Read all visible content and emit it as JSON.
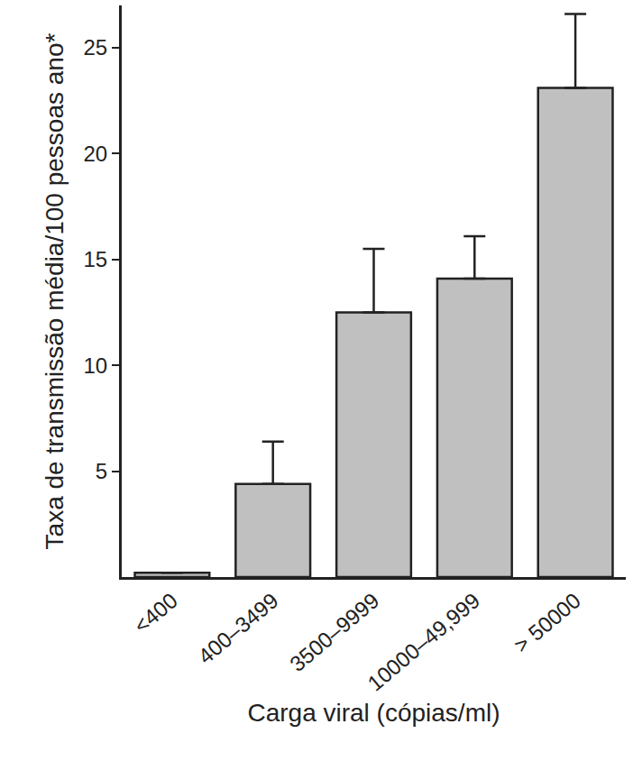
{
  "chart_data": {
    "type": "bar",
    "x_label": "Carga viral (cópias/ml)",
    "y_label": "Taxa de transmissão média/100 pessoas ano*",
    "categories": [
      "<400",
      "400–3499",
      "3500–9999",
      "10000–49,999",
      "> 50000"
    ],
    "values": [
      0.2,
      4.4,
      12.5,
      14.1,
      23.1
    ],
    "error_plus": [
      null,
      2.0,
      3.0,
      2.0,
      3.5
    ],
    "color": "#c0c0c0",
    "ylim": [
      0,
      27
    ],
    "yticks": [
      5,
      10,
      15,
      20,
      25
    ],
    "grid": false
  }
}
